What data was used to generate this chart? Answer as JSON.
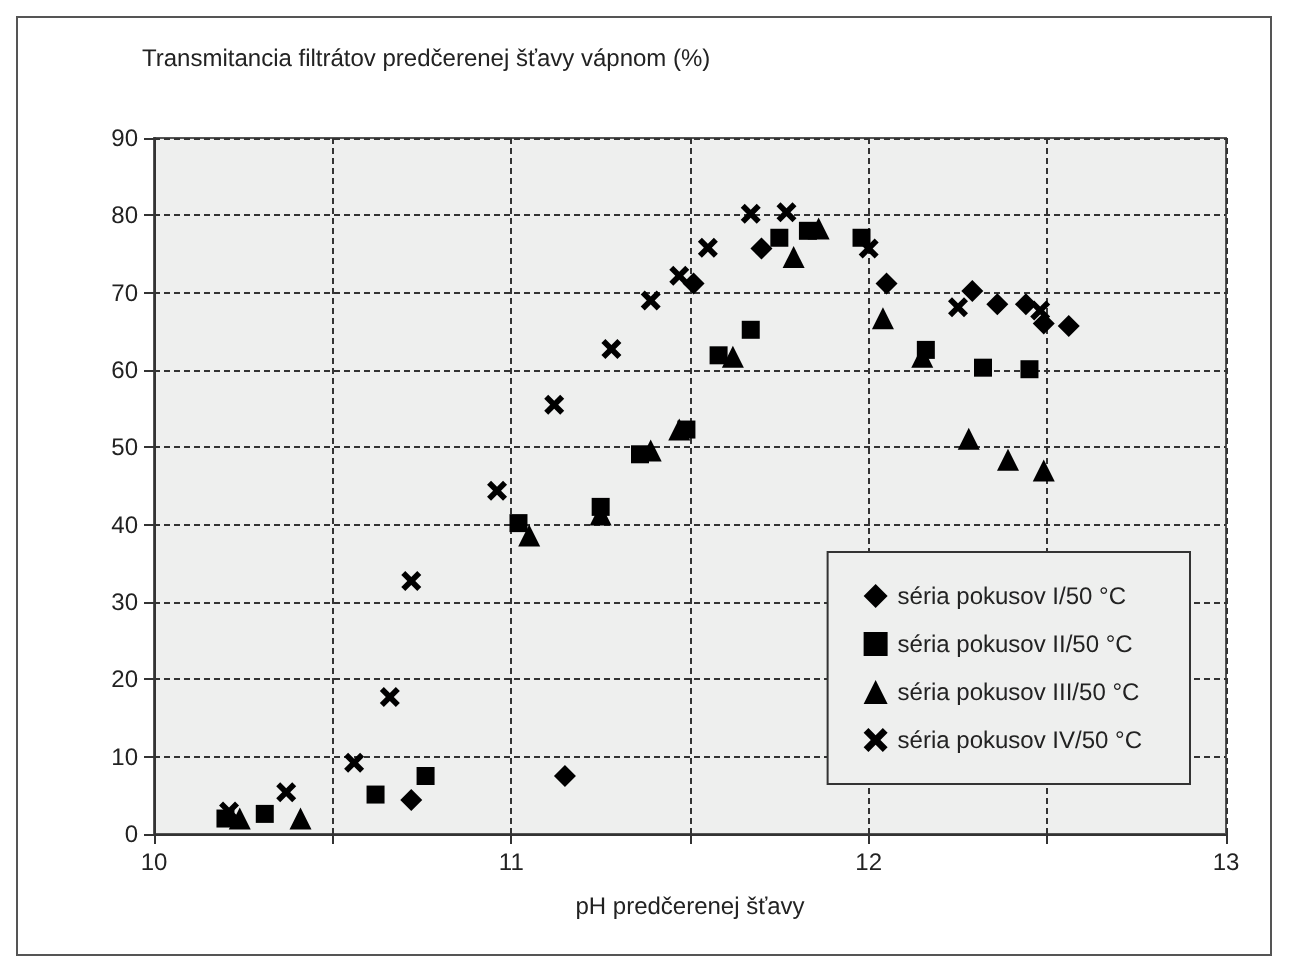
{
  "chart_data": {
    "type": "scatter",
    "ylabel": "Transmitancia filtrátov predčerenej šťavy vápnom (%)",
    "xlabel": "pH predčerenej šťavy",
    "xlim": [
      10,
      13
    ],
    "xticks": [
      10,
      {
        "value": 10.5,
        "label": null
      },
      11,
      {
        "value": 11.5,
        "label": null
      },
      12,
      {
        "value": 12.5,
        "label": null
      },
      13
    ],
    "ylim": [
      0,
      90
    ],
    "yticks": [
      0,
      10,
      20,
      30,
      40,
      50,
      60,
      70,
      80,
      90
    ],
    "grid": true,
    "legend": "bottom right",
    "series": [
      {
        "name": "séria pokusov I/50 °C",
        "color": "#000000",
        "marker": "diamond",
        "x": [
          10.72,
          11.15,
          11.51,
          11.7,
          12.05,
          12.29,
          12.36,
          12.44,
          12.49,
          12.56
        ],
        "values": [
          4.4,
          7.5,
          71.2,
          75.7,
          71.2,
          70.2,
          68.5,
          68.5,
          66,
          65.7
        ]
      },
      {
        "name": "séria pokusov II/50 °C",
        "color": "#000000",
        "marker": "square",
        "x": [
          10.2,
          10.31,
          10.62,
          10.76,
          11.02,
          11.25,
          11.36,
          11.49,
          11.58,
          11.67,
          11.75,
          11.83,
          11.98,
          12.16,
          12.32,
          12.45
        ],
        "values": [
          2,
          2.6,
          5.1,
          7.5,
          40.2,
          42.3,
          49.1,
          52.3,
          61.9,
          65.2,
          77.1,
          78,
          77.1,
          62.6,
          60.3,
          60.1
        ]
      },
      {
        "name": "séria pokusov III/50 °C",
        "color": "#000000",
        "marker": "triangle",
        "x": [
          10.24,
          10.41,
          11.05,
          11.25,
          11.39,
          11.47,
          11.62,
          11.79,
          11.86,
          12.04,
          12.15,
          12.28,
          12.39,
          12.49
        ],
        "values": [
          2,
          2,
          38.6,
          41.3,
          49.6,
          52.3,
          61.7,
          74.6,
          78.3,
          66.7,
          61.7,
          51.1,
          48.4,
          47
        ]
      },
      {
        "name": "séria pokusov IV/50 °C",
        "color": "#000000",
        "marker": "cross",
        "x": [
          10.21,
          10.37,
          10.56,
          10.66,
          10.72,
          10.96,
          11.12,
          11.28,
          11.39,
          11.47,
          11.55,
          11.67,
          11.77,
          12,
          12.25,
          12.48
        ],
        "values": [
          2.9,
          5.4,
          9.2,
          17.7,
          32.7,
          44.4,
          55.5,
          62.7,
          69,
          72.2,
          75.8,
          80.2,
          80.4,
          75.7,
          68.1,
          67.7
        ]
      }
    ]
  }
}
